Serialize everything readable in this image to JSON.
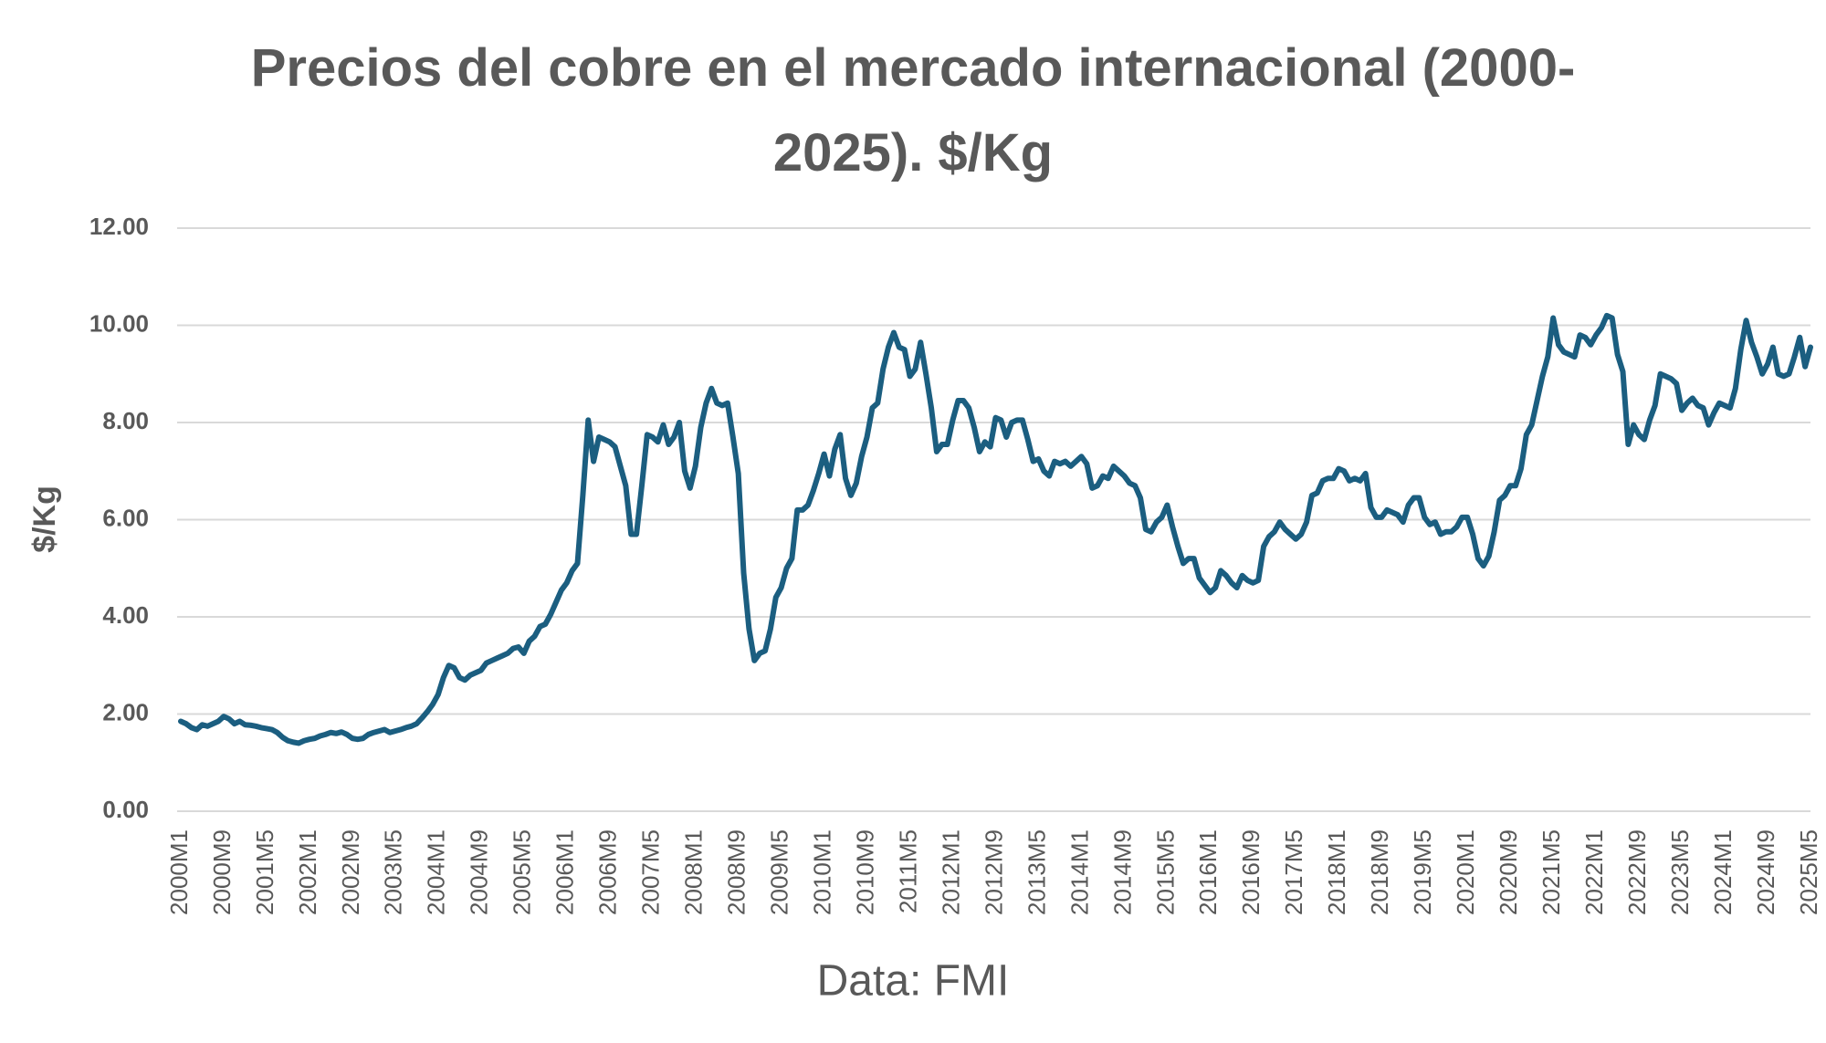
{
  "chart_data": {
    "type": "line",
    "title": "Precios del cobre en el mercado internacional (2000-2025). $/Kg",
    "y_label": "$/Kg",
    "source": "Data: FMI",
    "categories": [
      "2000M1",
      null,
      null,
      null,
      null,
      null,
      null,
      null,
      "2000M9",
      null,
      null,
      null,
      null,
      null,
      null,
      null,
      "2001M5",
      null,
      null,
      null,
      null,
      null,
      null,
      null,
      "2002M1",
      null,
      null,
      null,
      null,
      null,
      null,
      null,
      "2002M9",
      null,
      null,
      null,
      null,
      null,
      null,
      null,
      "2003M5",
      null,
      null,
      null,
      null,
      null,
      null,
      null,
      "2004M1",
      null,
      null,
      null,
      null,
      null,
      null,
      null,
      "2004M9",
      null,
      null,
      null,
      null,
      null,
      null,
      null,
      "2005M5",
      null,
      null,
      null,
      null,
      null,
      null,
      null,
      "2006M1",
      null,
      null,
      null,
      null,
      null,
      null,
      null,
      "2006M9",
      null,
      null,
      null,
      null,
      null,
      null,
      null,
      "2007M5",
      null,
      null,
      null,
      null,
      null,
      null,
      null,
      "2008M1",
      null,
      null,
      null,
      null,
      null,
      null,
      null,
      "2008M9",
      null,
      null,
      null,
      null,
      null,
      null,
      null,
      "2009M5",
      null,
      null,
      null,
      null,
      null,
      null,
      null,
      "2010M1",
      null,
      null,
      null,
      null,
      null,
      null,
      null,
      "2010M9",
      null,
      null,
      null,
      null,
      null,
      null,
      null,
      "2011M5",
      null,
      null,
      null,
      null,
      null,
      null,
      null,
      "2012M1",
      null,
      null,
      null,
      null,
      null,
      null,
      null,
      "2012M9",
      null,
      null,
      null,
      null,
      null,
      null,
      null,
      "2013M5",
      null,
      null,
      null,
      null,
      null,
      null,
      null,
      "2014M1",
      null,
      null,
      null,
      null,
      null,
      null,
      null,
      "2014M9",
      null,
      null,
      null,
      null,
      null,
      null,
      null,
      "2015M5",
      null,
      null,
      null,
      null,
      null,
      null,
      null,
      "2016M1",
      null,
      null,
      null,
      null,
      null,
      null,
      null,
      "2016M9",
      null,
      null,
      null,
      null,
      null,
      null,
      null,
      "2017M5",
      null,
      null,
      null,
      null,
      null,
      null,
      null,
      "2018M1",
      null,
      null,
      null,
      null,
      null,
      null,
      null,
      "2018M9",
      null,
      null,
      null,
      null,
      null,
      null,
      null,
      "2019M5",
      null,
      null,
      null,
      null,
      null,
      null,
      null,
      "2020M1",
      null,
      null,
      null,
      null,
      null,
      null,
      null,
      "2020M9",
      null,
      null,
      null,
      null,
      null,
      null,
      null,
      "2021M5",
      null,
      null,
      null,
      null,
      null,
      null,
      null,
      "2022M1",
      null,
      null,
      null,
      null,
      null,
      null,
      null,
      "2022M9",
      null,
      null,
      null,
      null,
      null,
      null,
      null,
      "2023M5",
      null,
      null,
      null,
      null,
      null,
      null,
      null,
      "2024M1",
      null,
      null,
      null,
      null,
      null,
      null,
      null,
      "2024M9",
      null,
      null,
      null,
      null,
      null,
      null,
      null,
      "2025M5"
    ],
    "values": [
      1.85,
      1.8,
      1.72,
      1.68,
      1.78,
      1.75,
      1.8,
      1.85,
      1.95,
      1.9,
      1.8,
      1.85,
      1.78,
      1.77,
      1.75,
      1.72,
      1.7,
      1.68,
      1.62,
      1.52,
      1.45,
      1.42,
      1.4,
      1.45,
      1.48,
      1.5,
      1.55,
      1.58,
      1.62,
      1.6,
      1.63,
      1.58,
      1.5,
      1.48,
      1.5,
      1.58,
      1.62,
      1.65,
      1.68,
      1.62,
      1.65,
      1.68,
      1.72,
      1.75,
      1.8,
      1.92,
      2.05,
      2.2,
      2.4,
      2.75,
      3.0,
      2.95,
      2.75,
      2.7,
      2.8,
      2.85,
      2.9,
      3.05,
      3.1,
      3.15,
      3.2,
      3.25,
      3.35,
      3.38,
      3.25,
      3.5,
      3.6,
      3.8,
      3.85,
      4.05,
      4.3,
      4.55,
      4.7,
      4.95,
      5.1,
      6.5,
      8.05,
      7.2,
      7.7,
      7.65,
      7.6,
      7.5,
      7.1,
      6.7,
      5.7,
      5.7,
      6.7,
      7.75,
      7.7,
      7.6,
      7.95,
      7.55,
      7.7,
      8.0,
      7.0,
      6.65,
      7.1,
      7.9,
      8.4,
      8.7,
      8.4,
      8.35,
      8.4,
      7.7,
      6.95,
      4.9,
      3.75,
      3.1,
      3.25,
      3.3,
      3.75,
      4.4,
      4.6,
      5.0,
      5.2,
      6.2,
      6.2,
      6.3,
      6.6,
      6.95,
      7.35,
      6.9,
      7.45,
      7.75,
      6.85,
      6.5,
      6.75,
      7.3,
      7.7,
      8.3,
      8.4,
      9.1,
      9.55,
      9.85,
      9.55,
      9.5,
      8.95,
      9.1,
      9.65,
      9.0,
      8.3,
      7.4,
      7.55,
      7.55,
      8.05,
      8.45,
      8.45,
      8.3,
      7.9,
      7.4,
      7.6,
      7.5,
      8.1,
      8.05,
      7.7,
      8.0,
      8.05,
      8.05,
      7.65,
      7.2,
      7.25,
      7.0,
      6.9,
      7.2,
      7.15,
      7.2,
      7.1,
      7.2,
      7.3,
      7.15,
      6.65,
      6.7,
      6.9,
      6.85,
      7.1,
      7.0,
      6.9,
      6.75,
      6.7,
      6.45,
      5.8,
      5.75,
      5.95,
      6.05,
      6.3,
      5.85,
      5.45,
      5.1,
      5.2,
      5.2,
      4.8,
      4.65,
      4.5,
      4.6,
      4.95,
      4.85,
      4.7,
      4.6,
      4.85,
      4.75,
      4.7,
      4.75,
      5.45,
      5.65,
      5.75,
      5.95,
      5.8,
      5.7,
      5.6,
      5.7,
      5.95,
      6.5,
      6.55,
      6.8,
      6.85,
      6.85,
      7.05,
      7.0,
      6.8,
      6.85,
      6.8,
      6.95,
      6.25,
      6.05,
      6.05,
      6.2,
      6.15,
      6.1,
      5.95,
      6.3,
      6.45,
      6.45,
      6.05,
      5.9,
      5.95,
      5.7,
      5.75,
      5.75,
      5.85,
      6.05,
      6.05,
      5.7,
      5.2,
      5.05,
      5.25,
      5.75,
      6.4,
      6.5,
      6.7,
      6.7,
      7.05,
      7.75,
      7.95,
      8.45,
      8.95,
      9.35,
      10.15,
      9.6,
      9.45,
      9.4,
      9.35,
      9.8,
      9.75,
      9.6,
      9.8,
      9.95,
      10.2,
      10.15,
      9.4,
      9.05,
      7.55,
      7.95,
      7.75,
      7.65,
      8.05,
      8.35,
      9.0,
      8.95,
      8.9,
      8.8,
      8.25,
      8.4,
      8.5,
      8.35,
      8.3,
      7.95,
      8.2,
      8.4,
      8.35,
      8.3,
      8.7,
      9.5,
      10.1,
      9.65,
      9.35,
      9.0,
      9.2,
      9.55,
      9.0,
      8.95,
      9.0,
      9.35,
      9.75,
      9.15,
      9.55
    ],
    "color": "#1b5e80",
    "ylim": [
      0,
      12
    ],
    "yticks": [
      {
        "value": 0,
        "label": "0.00"
      },
      {
        "value": 2,
        "label": "2.00"
      },
      {
        "value": 4,
        "label": "4.00"
      },
      {
        "value": 6,
        "label": "6.00"
      },
      {
        "value": 8,
        "label": "8.00"
      },
      {
        "value": 10,
        "label": "10.00"
      },
      {
        "value": 12,
        "label": "12.00"
      }
    ],
    "grid": true
  }
}
